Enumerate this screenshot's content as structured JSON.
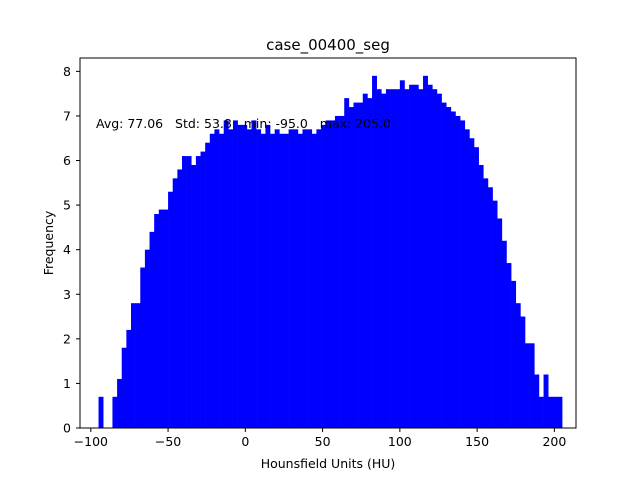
{
  "chart_data": {
    "type": "bar",
    "title": "case_00400_seg",
    "xlabel": "Hounsfield Units (HU)",
    "ylabel": "Frequency",
    "annotation": "Avg: 77.06   Std: 53.8   min: -95.0   max: 205.0",
    "bar_color": "#0000ff",
    "xlim": [
      -107.0,
      214.0
    ],
    "ylim": [
      0,
      8.3
    ],
    "xticks": [
      -100,
      -50,
      0,
      50,
      100,
      150,
      200
    ],
    "xtick_labels": [
      "−100",
      "−50",
      "0",
      "50",
      "100",
      "150",
      "200"
    ],
    "yticks": [
      0,
      1,
      2,
      3,
      4,
      5,
      6,
      7,
      8
    ],
    "ytick_labels": [
      "0",
      "1",
      "2",
      "3",
      "4",
      "5",
      "6",
      "7",
      "8"
    ],
    "bin_start": -95.0,
    "bin_width": 3.0,
    "values": [
      0.7,
      0.0,
      0.0,
      0.7,
      1.1,
      1.8,
      2.2,
      2.8,
      2.8,
      3.6,
      4.0,
      4.4,
      4.8,
      4.9,
      4.9,
      5.3,
      5.6,
      5.8,
      6.1,
      6.1,
      5.9,
      6.1,
      6.2,
      6.4,
      6.6,
      6.7,
      6.6,
      6.9,
      6.7,
      6.9,
      6.8,
      6.8,
      6.7,
      6.9,
      6.7,
      6.6,
      6.8,
      6.6,
      6.7,
      6.6,
      6.6,
      6.7,
      6.7,
      6.6,
      6.7,
      6.7,
      6.6,
      6.7,
      6.8,
      6.9,
      6.9,
      7.0,
      7.0,
      7.4,
      7.2,
      7.3,
      7.3,
      7.5,
      7.4,
      7.9,
      7.6,
      7.5,
      7.6,
      7.6,
      7.6,
      7.8,
      7.6,
      7.7,
      7.7,
      7.6,
      7.9,
      7.7,
      7.6,
      7.5,
      7.3,
      7.2,
      7.1,
      7.0,
      6.9,
      6.7,
      6.5,
      6.3,
      5.9,
      5.6,
      5.4,
      5.1,
      4.7,
      4.2,
      3.7,
      3.3,
      2.8,
      2.5,
      1.9,
      1.9,
      1.2,
      0.7,
      1.2,
      0.7,
      0.7,
      0.7
    ]
  }
}
